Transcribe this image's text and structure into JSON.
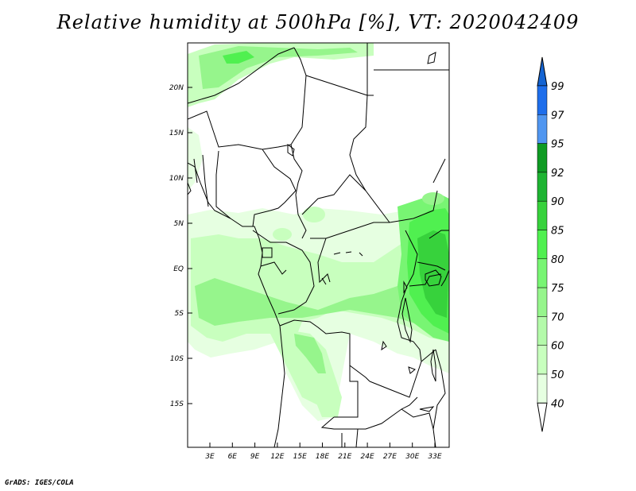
{
  "title": "Relative humidity at 500hPa [%], VT: 2020042409",
  "credit": "GrADS: IGES/COLA",
  "map": {
    "lat_labels": [
      "20N",
      "15N",
      "10N",
      "5N",
      "EQ",
      "5S",
      "10S",
      "15S"
    ],
    "lon_labels": [
      "3E",
      "6E",
      "9E",
      "12E",
      "15E",
      "18E",
      "21E",
      "24E",
      "27E",
      "30E",
      "33E"
    ]
  },
  "colorbar": {
    "levels": [
      "99",
      "97",
      "95",
      "92",
      "90",
      "85",
      "80",
      "75",
      "70",
      "60",
      "50",
      "40"
    ],
    "colors": [
      "#1464d2",
      "#1e6eeb",
      "#5096f0",
      "#0f9b23",
      "#1eb432",
      "#37d23c",
      "#50f050",
      "#78f573",
      "#96f58c",
      "#b4faaa",
      "#c8ffbe",
      "#e6ffe1"
    ]
  },
  "chart_data": {
    "type": "heatmap",
    "variable": "Relative humidity at 500hPa",
    "unit": "%",
    "valid_time": "2020042409",
    "lon_range": [
      0,
      35
    ],
    "lat_range": [
      -20,
      25
    ],
    "contour_levels": [
      40,
      50,
      60,
      70,
      75,
      80,
      85,
      90,
      92,
      95,
      97,
      99
    ]
  }
}
